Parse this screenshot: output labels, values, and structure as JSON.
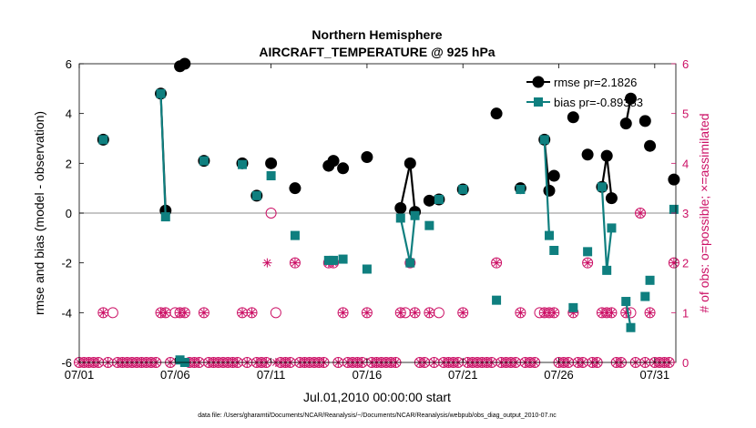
{
  "chart_data": {
    "type": "line",
    "title": "Northern Hemisphere",
    "subtitle": "AIRCRAFT_TEMPERATURE @ 925 hPa",
    "xlabel": "Jul.01,2010 00:00:00 start",
    "ylabel": "rmse and bias (model - observation)",
    "y2label": "# of obs: o=possible; ×=assimilated",
    "footnote": "data file: /Users/gharamti/Documents/NCAR/Reanalysis/~/Documents/NCAR/Reanalysis/webpub/obs_diag_output_2010-07.nc",
    "xlim": [
      1,
      32.1
    ],
    "ylim": [
      -6,
      6
    ],
    "y2lim": [
      0,
      6
    ],
    "xticks": [
      1,
      6,
      11,
      16,
      21,
      26,
      31
    ],
    "xticklabels": [
      "07/01",
      "07/06",
      "07/11",
      "07/16",
      "07/21",
      "07/26",
      "07/31"
    ],
    "yticks": [
      -6,
      -4,
      -2,
      0,
      2,
      4,
      6
    ],
    "yticklabels": [
      "-6",
      "-4",
      "-2",
      "0",
      "2",
      "4",
      "6"
    ],
    "y2ticks": [
      0,
      1,
      2,
      3,
      4,
      5,
      6
    ],
    "y2ticklabels": [
      "0",
      "1",
      "2",
      "3",
      "4",
      "5",
      "6"
    ],
    "legend_position": "top-right",
    "grid": false,
    "zero_line": true,
    "colors": {
      "rmse": "#000000",
      "bias": "#0f7f7f",
      "obs": "#cc1166",
      "zero": "#b3b3b3"
    },
    "series": [
      {
        "name": "rmse pr=2.1826",
        "segments": [
          [
            [
              2.25,
              2.95
            ]
          ],
          [
            [
              5.25,
              4.8
            ],
            [
              5.5,
              0.1
            ]
          ],
          [
            [
              6.25,
              5.9
            ],
            [
              6.5,
              6.0
            ]
          ],
          [
            [
              7.5,
              2.1
            ]
          ],
          [
            [
              9.5,
              2.0
            ]
          ],
          [
            [
              10.25,
              0.7
            ]
          ],
          [
            [
              11.0,
              2.0
            ]
          ],
          [
            [
              12.25,
              1.0
            ]
          ],
          [
            [
              14.0,
              1.9
            ],
            [
              14.25,
              2.1
            ]
          ],
          [
            [
              14.75,
              1.8
            ]
          ],
          [
            [
              16.0,
              2.25
            ]
          ],
          [
            [
              17.75,
              0.2
            ],
            [
              18.25,
              2.0
            ],
            [
              18.5,
              0.05
            ]
          ],
          [
            [
              19.25,
              0.5
            ]
          ],
          [
            [
              19.75,
              0.55
            ]
          ],
          [
            [
              21.0,
              0.95
            ]
          ],
          [
            [
              22.75,
              4.0
            ]
          ],
          [
            [
              24.0,
              1.0
            ]
          ],
          [
            [
              25.25,
              2.95
            ],
            [
              25.5,
              0.9
            ]
          ],
          [
            [
              25.75,
              1.5
            ]
          ],
          [
            [
              26.75,
              3.85
            ]
          ],
          [
            [
              27.5,
              2.35
            ]
          ],
          [
            [
              28.25,
              1.05
            ],
            [
              28.5,
              2.3
            ],
            [
              28.75,
              0.6
            ]
          ],
          [
            [
              29.5,
              3.6
            ],
            [
              29.75,
              4.6
            ]
          ],
          [
            [
              30.5,
              3.7
            ]
          ],
          [
            [
              30.75,
              2.7
            ]
          ],
          [
            [
              32.0,
              1.35
            ]
          ]
        ]
      },
      {
        "name": "bias pr=-0.89383",
        "segments": [
          [
            [
              2.25,
              2.95
            ]
          ],
          [
            [
              5.25,
              4.8
            ],
            [
              5.5,
              -0.15
            ]
          ],
          [
            [
              6.25,
              -5.9
            ],
            [
              6.5,
              -6.0
            ]
          ],
          [
            [
              7.5,
              2.1
            ]
          ],
          [
            [
              9.5,
              1.95
            ]
          ],
          [
            [
              10.25,
              0.7
            ]
          ],
          [
            [
              11.0,
              1.5
            ]
          ],
          [
            [
              12.25,
              -0.9
            ]
          ],
          [
            [
              14.0,
              -1.9
            ],
            [
              14.25,
              -1.9
            ]
          ],
          [
            [
              14.75,
              -1.85
            ]
          ],
          [
            [
              16.0,
              -2.25
            ]
          ],
          [
            [
              17.75,
              -0.2
            ],
            [
              18.25,
              -2.0
            ],
            [
              18.5,
              -0.1
            ]
          ],
          [
            [
              19.25,
              -0.5
            ]
          ],
          [
            [
              19.75,
              0.55
            ]
          ],
          [
            [
              21.0,
              0.95
            ]
          ],
          [
            [
              22.75,
              -3.5
            ]
          ],
          [
            [
              24.0,
              0.95
            ]
          ],
          [
            [
              25.25,
              2.95
            ],
            [
              25.5,
              -0.9
            ]
          ],
          [
            [
              25.75,
              -1.5
            ]
          ],
          [
            [
              26.75,
              -3.8
            ]
          ],
          [
            [
              27.5,
              -1.55
            ]
          ],
          [
            [
              28.25,
              1.05
            ],
            [
              28.5,
              -2.3
            ],
            [
              28.75,
              -0.6
            ]
          ],
          [
            [
              29.5,
              -3.55
            ],
            [
              29.75,
              -4.6
            ]
          ],
          [
            [
              30.5,
              -3.35
            ]
          ],
          [
            [
              30.75,
              -2.7
            ]
          ],
          [
            [
              32.0,
              0.15
            ]
          ]
        ]
      }
    ],
    "obs_possible": [
      [
        1.0,
        0
      ],
      [
        1.25,
        0
      ],
      [
        1.5,
        0
      ],
      [
        1.75,
        0
      ],
      [
        2.0,
        0
      ],
      [
        2.25,
        1
      ],
      [
        2.5,
        0
      ],
      [
        2.75,
        1
      ],
      [
        3.0,
        0
      ],
      [
        3.25,
        0
      ],
      [
        3.5,
        0
      ],
      [
        3.75,
        0
      ],
      [
        4.0,
        0
      ],
      [
        4.25,
        0
      ],
      [
        4.5,
        0
      ],
      [
        4.75,
        0
      ],
      [
        5.0,
        0
      ],
      [
        5.25,
        1
      ],
      [
        5.5,
        1
      ],
      [
        5.75,
        0
      ],
      [
        6.0,
        1
      ],
      [
        6.25,
        1
      ],
      [
        6.5,
        1
      ],
      [
        6.75,
        0
      ],
      [
        7.0,
        0
      ],
      [
        7.25,
        0
      ],
      [
        7.5,
        1
      ],
      [
        7.75,
        0
      ],
      [
        8.0,
        0
      ],
      [
        8.25,
        0
      ],
      [
        8.5,
        0
      ],
      [
        8.75,
        0
      ],
      [
        9.0,
        0
      ],
      [
        9.25,
        0
      ],
      [
        9.5,
        1
      ],
      [
        9.75,
        0
      ],
      [
        10.0,
        1
      ],
      [
        10.25,
        0
      ],
      [
        10.5,
        0
      ],
      [
        10.75,
        0
      ],
      [
        11.0,
        3
      ],
      [
        11.25,
        1
      ],
      [
        11.5,
        0
      ],
      [
        11.75,
        0
      ],
      [
        12.0,
        0
      ],
      [
        12.25,
        2
      ],
      [
        12.5,
        0
      ],
      [
        12.75,
        0
      ],
      [
        13.0,
        0
      ],
      [
        13.25,
        0
      ],
      [
        13.5,
        0
      ],
      [
        13.75,
        0
      ],
      [
        14.0,
        2
      ],
      [
        14.25,
        2
      ],
      [
        14.5,
        0
      ],
      [
        14.75,
        1
      ],
      [
        15.0,
        0
      ],
      [
        15.25,
        0
      ],
      [
        15.5,
        0
      ],
      [
        15.75,
        0
      ],
      [
        16.0,
        1
      ],
      [
        16.25,
        0
      ],
      [
        16.5,
        0
      ],
      [
        16.75,
        0
      ],
      [
        17.0,
        0
      ],
      [
        17.25,
        0
      ],
      [
        17.5,
        0
      ],
      [
        17.75,
        1
      ],
      [
        18.0,
        1
      ],
      [
        18.25,
        2
      ],
      [
        18.5,
        1
      ],
      [
        18.75,
        0
      ],
      [
        19.0,
        0
      ],
      [
        19.25,
        1
      ],
      [
        19.5,
        0
      ],
      [
        19.75,
        1
      ],
      [
        20.0,
        0
      ],
      [
        20.25,
        0
      ],
      [
        20.5,
        0
      ],
      [
        20.75,
        0
      ],
      [
        21.0,
        1
      ],
      [
        21.25,
        0
      ],
      [
        21.5,
        0
      ],
      [
        21.75,
        0
      ],
      [
        22.0,
        0
      ],
      [
        22.25,
        0
      ],
      [
        22.5,
        0
      ],
      [
        22.75,
        2
      ],
      [
        23.0,
        0
      ],
      [
        23.25,
        0
      ],
      [
        23.5,
        0
      ],
      [
        23.75,
        0
      ],
      [
        24.0,
        1
      ],
      [
        24.25,
        0
      ],
      [
        24.5,
        0
      ],
      [
        24.75,
        0
      ],
      [
        25.0,
        1
      ],
      [
        25.25,
        1
      ],
      [
        25.5,
        1
      ],
      [
        25.75,
        1
      ],
      [
        26.0,
        0
      ],
      [
        26.25,
        0
      ],
      [
        26.5,
        0
      ],
      [
        26.75,
        1
      ],
      [
        27.0,
        0
      ],
      [
        27.25,
        0
      ],
      [
        27.5,
        2
      ],
      [
        27.75,
        0
      ],
      [
        28.0,
        0
      ],
      [
        28.25,
        1
      ],
      [
        28.5,
        1
      ],
      [
        28.75,
        1
      ],
      [
        29.0,
        0
      ],
      [
        29.25,
        0
      ],
      [
        29.5,
        1
      ],
      [
        29.75,
        1
      ],
      [
        30.0,
        0
      ],
      [
        30.25,
        3
      ],
      [
        30.5,
        0
      ],
      [
        30.75,
        1
      ],
      [
        31.0,
        0
      ],
      [
        31.25,
        0
      ],
      [
        31.5,
        0
      ],
      [
        31.75,
        0
      ],
      [
        32.0,
        2
      ]
    ],
    "obs_assimilated": [
      [
        1.0,
        0
      ],
      [
        1.25,
        0
      ],
      [
        1.5,
        0
      ],
      [
        1.75,
        0
      ],
      [
        2.0,
        0
      ],
      [
        2.25,
        1
      ],
      [
        2.5,
        0
      ],
      [
        3.0,
        0
      ],
      [
        3.25,
        0
      ],
      [
        3.5,
        0
      ],
      [
        3.75,
        0
      ],
      [
        4.0,
        0
      ],
      [
        4.25,
        0
      ],
      [
        4.5,
        0
      ],
      [
        4.75,
        0
      ],
      [
        5.0,
        0
      ],
      [
        5.25,
        1
      ],
      [
        5.5,
        1
      ],
      [
        5.75,
        0
      ],
      [
        6.25,
        1
      ],
      [
        6.5,
        1
      ],
      [
        6.75,
        0
      ],
      [
        7.0,
        0
      ],
      [
        7.25,
        0
      ],
      [
        7.5,
        1
      ],
      [
        7.75,
        0
      ],
      [
        8.0,
        0
      ],
      [
        8.25,
        0
      ],
      [
        8.5,
        0
      ],
      [
        8.75,
        0
      ],
      [
        9.0,
        0
      ],
      [
        9.25,
        0
      ],
      [
        9.5,
        1
      ],
      [
        9.75,
        0
      ],
      [
        10.0,
        1
      ],
      [
        10.25,
        0
      ],
      [
        10.5,
        0
      ],
      [
        10.75,
        0
      ],
      [
        10.8,
        2
      ],
      [
        11.25,
        0
      ],
      [
        11.5,
        0
      ],
      [
        11.75,
        0
      ],
      [
        12.0,
        0
      ],
      [
        12.25,
        2
      ],
      [
        12.5,
        0
      ],
      [
        12.75,
        0
      ],
      [
        13.0,
        0
      ],
      [
        13.25,
        0
      ],
      [
        13.5,
        0
      ],
      [
        13.75,
        0
      ],
      [
        14.0,
        2
      ],
      [
        14.25,
        2
      ],
      [
        14.5,
        0
      ],
      [
        14.75,
        1
      ],
      [
        15.0,
        0
      ],
      [
        15.25,
        0
      ],
      [
        15.5,
        0
      ],
      [
        15.75,
        0
      ],
      [
        16.0,
        1
      ],
      [
        16.25,
        0
      ],
      [
        16.5,
        0
      ],
      [
        16.75,
        0
      ],
      [
        17.0,
        0
      ],
      [
        17.25,
        0
      ],
      [
        17.5,
        0
      ],
      [
        17.75,
        1
      ],
      [
        18.25,
        2
      ],
      [
        18.5,
        1
      ],
      [
        18.75,
        0
      ],
      [
        19.0,
        0
      ],
      [
        19.25,
        1
      ],
      [
        19.5,
        0
      ],
      [
        20.0,
        0
      ],
      [
        20.25,
        0
      ],
      [
        20.5,
        0
      ],
      [
        20.75,
        0
      ],
      [
        21.0,
        1
      ],
      [
        21.25,
        0
      ],
      [
        21.5,
        0
      ],
      [
        21.75,
        0
      ],
      [
        22.0,
        0
      ],
      [
        22.25,
        0
      ],
      [
        22.5,
        0
      ],
      [
        22.75,
        2
      ],
      [
        23.0,
        0
      ],
      [
        23.25,
        0
      ],
      [
        23.5,
        0
      ],
      [
        23.75,
        0
      ],
      [
        24.0,
        1
      ],
      [
        24.25,
        0
      ],
      [
        24.5,
        0
      ],
      [
        24.75,
        0
      ],
      [
        25.25,
        1
      ],
      [
        25.5,
        1
      ],
      [
        25.75,
        1
      ],
      [
        26.0,
        0
      ],
      [
        26.25,
        0
      ],
      [
        26.5,
        0
      ],
      [
        26.75,
        1
      ],
      [
        27.0,
        0
      ],
      [
        27.25,
        0
      ],
      [
        27.5,
        2
      ],
      [
        27.75,
        0
      ],
      [
        28.0,
        0
      ],
      [
        28.25,
        1
      ],
      [
        28.5,
        1
      ],
      [
        28.75,
        1
      ],
      [
        29.0,
        0
      ],
      [
        29.25,
        0
      ],
      [
        29.5,
        1
      ],
      [
        30.0,
        0
      ],
      [
        30.25,
        3
      ],
      [
        30.5,
        0
      ],
      [
        30.75,
        1
      ],
      [
        31.0,
        0
      ],
      [
        31.25,
        0
      ],
      [
        31.5,
        0
      ],
      [
        31.75,
        0
      ],
      [
        32.0,
        2
      ]
    ]
  }
}
